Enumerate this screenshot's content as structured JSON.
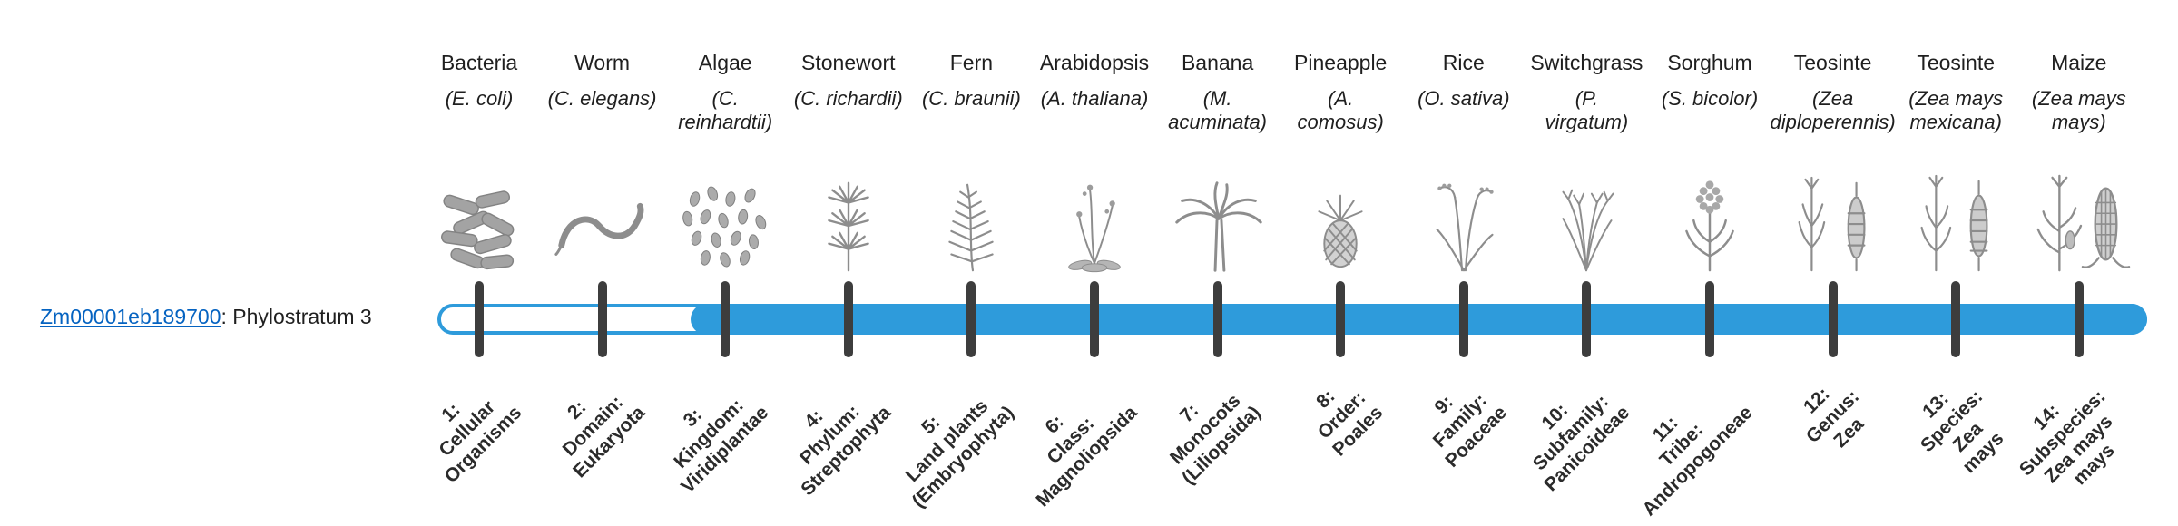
{
  "gene": {
    "id": "Zm00001eb189700",
    "label_suffix": ": Phylostratum 3",
    "link_color": "#0563c1"
  },
  "timeline": {
    "bar_color": "#2e9bdb",
    "tick_color": "#3d3d3d",
    "phylostratum": 3,
    "filled_from_index": 2,
    "stratum_count": 14
  },
  "strata": [
    {
      "number": 1,
      "common": "Bacteria",
      "sci_lines": [
        "(E. coli)"
      ],
      "icon": "bacteria",
      "stage_lines": [
        "1:",
        "Cellular",
        "Organisms"
      ]
    },
    {
      "number": 2,
      "common": "Worm",
      "sci_lines": [
        "(C. elegans)"
      ],
      "icon": "worm",
      "stage_lines": [
        "2:",
        "Domain:",
        "Eukaryota"
      ]
    },
    {
      "number": 3,
      "common": "Algae",
      "sci_lines": [
        "(C.",
        "reinhardtii)"
      ],
      "icon": "algae",
      "stage_lines": [
        "3:",
        "Kingdom:",
        "Viridiplantae"
      ]
    },
    {
      "number": 4,
      "common": "Stonewort",
      "sci_lines": [
        "(C. richardii)"
      ],
      "icon": "stonewort",
      "stage_lines": [
        "4:",
        "Phylum:",
        "Streptophyta"
      ]
    },
    {
      "number": 5,
      "common": "Fern",
      "sci_lines": [
        "(C. braunii)"
      ],
      "icon": "fern",
      "stage_lines": [
        "5:",
        "Land plants",
        "(Embryophyta)"
      ]
    },
    {
      "number": 6,
      "common": "Arabidopsis",
      "sci_lines": [
        "(A. thaliana)"
      ],
      "icon": "arabidopsis",
      "stage_lines": [
        "6:",
        "Class:",
        "Magnoliopsida"
      ]
    },
    {
      "number": 7,
      "common": "Banana",
      "sci_lines": [
        "(M.",
        "acuminata)"
      ],
      "icon": "banana",
      "stage_lines": [
        "7:",
        "Monocots",
        "(Liliopsida)"
      ]
    },
    {
      "number": 8,
      "common": "Pineapple",
      "sci_lines": [
        "(A.",
        "comosus)"
      ],
      "icon": "pineapple",
      "stage_lines": [
        "8:",
        "Order:",
        "Poales"
      ]
    },
    {
      "number": 9,
      "common": "Rice",
      "sci_lines": [
        "(O. sativa)"
      ],
      "icon": "rice",
      "stage_lines": [
        "9:",
        "Family:",
        "Poaceae"
      ]
    },
    {
      "number": 10,
      "common": "Switchgrass",
      "sci_lines": [
        "(P.",
        "virgatum)"
      ],
      "icon": "switchgrass",
      "stage_lines": [
        "10:",
        "Subfamily:",
        "Panicoideae"
      ]
    },
    {
      "number": 11,
      "common": "Sorghum",
      "sci_lines": [
        "(S. bicolor)"
      ],
      "icon": "sorghum",
      "stage_lines": [
        "11:",
        "Tribe:",
        "Andropogoneae"
      ]
    },
    {
      "number": 12,
      "common": "Teosinte",
      "sci_lines": [
        "(Zea",
        "diploperennis)"
      ],
      "icon": "teosinte-diplo",
      "stage_lines": [
        "12:",
        "Genus:",
        "Zea"
      ]
    },
    {
      "number": 13,
      "common": "Teosinte",
      "sci_lines": [
        "(Zea mays",
        "mexicana)"
      ],
      "icon": "teosinte-mex",
      "stage_lines": [
        "13:",
        "Species:",
        "Zea",
        "mays"
      ]
    },
    {
      "number": 14,
      "common": "Maize",
      "sci_lines": [
        "(Zea mays",
        "mays)"
      ],
      "icon": "maize",
      "stage_lines": [
        "14:",
        "Subspecies:",
        "Zea mays",
        "mays"
      ]
    }
  ]
}
